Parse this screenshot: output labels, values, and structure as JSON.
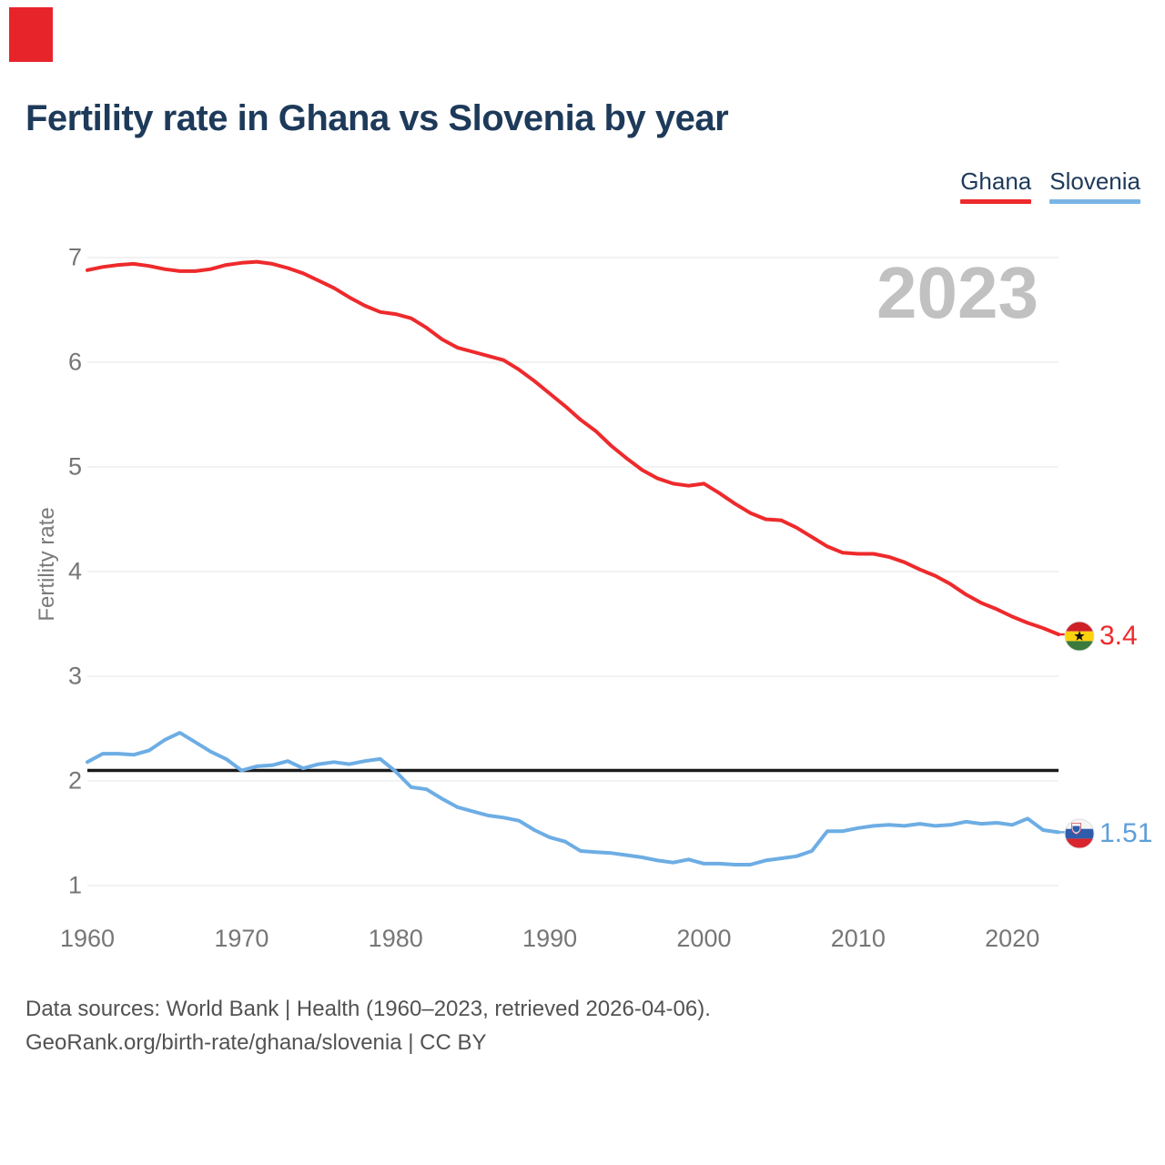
{
  "marker": {
    "color": "#e8242b"
  },
  "footer": {
    "line1": "Data sources: World Bank | Health (1960–2023, retrieved 2026-04-06).",
    "line2": "GeoRank.org/birth-rate/ghana/slovenia | CC BY"
  },
  "icons": {
    "ghana_flag": "ghana-flag-icon",
    "slovenia_flag": "slovenia-flag-icon"
  },
  "chart_data": {
    "type": "line",
    "title": "Fertility rate in Ghana vs Slovenia by year",
    "ylabel": "Fertility rate",
    "xlabel": "",
    "watermark": "2023",
    "grid": true,
    "legend_position": "top-right",
    "ylim": [
      1,
      7
    ],
    "y_ticks": [
      1,
      2,
      3,
      4,
      5,
      6,
      7
    ],
    "x_ticks": [
      1960,
      1970,
      1980,
      1990,
      2000,
      2010,
      2020
    ],
    "reference_line": {
      "value": 2.1,
      "color": "#1a1a1a"
    },
    "x": [
      1960,
      1961,
      1962,
      1963,
      1964,
      1965,
      1966,
      1967,
      1968,
      1969,
      1970,
      1971,
      1972,
      1973,
      1974,
      1975,
      1976,
      1977,
      1978,
      1979,
      1980,
      1981,
      1982,
      1983,
      1984,
      1985,
      1986,
      1987,
      1988,
      1989,
      1990,
      1991,
      1992,
      1993,
      1994,
      1995,
      1996,
      1997,
      1998,
      1999,
      2000,
      2001,
      2002,
      2003,
      2004,
      2005,
      2006,
      2007,
      2008,
      2009,
      2010,
      2011,
      2012,
      2013,
      2014,
      2015,
      2016,
      2017,
      2018,
      2019,
      2020,
      2021,
      2022,
      2023
    ],
    "series": [
      {
        "name": "Ghana",
        "color": "#ee2a2c",
        "end_label": "3.4",
        "values": [
          6.88,
          6.91,
          6.93,
          6.94,
          6.92,
          6.89,
          6.87,
          6.87,
          6.89,
          6.93,
          6.95,
          6.96,
          6.94,
          6.9,
          6.85,
          6.78,
          6.71,
          6.62,
          6.54,
          6.48,
          6.46,
          6.42,
          6.33,
          6.22,
          6.14,
          6.1,
          6.06,
          6.02,
          5.93,
          5.82,
          5.7,
          5.58,
          5.45,
          5.34,
          5.2,
          5.08,
          4.97,
          4.89,
          4.84,
          4.82,
          4.84,
          4.75,
          4.65,
          4.56,
          4.5,
          4.49,
          4.42,
          4.33,
          4.24,
          4.18,
          4.17,
          4.17,
          4.14,
          4.09,
          4.02,
          3.96,
          3.88,
          3.78,
          3.7,
          3.64,
          3.57,
          3.51,
          3.46,
          3.4
        ]
      },
      {
        "name": "Slovenia",
        "color": "#6dade4",
        "end_label": "1.51",
        "values": [
          2.18,
          2.26,
          2.26,
          2.25,
          2.29,
          2.39,
          2.46,
          2.37,
          2.28,
          2.21,
          2.1,
          2.14,
          2.15,
          2.19,
          2.12,
          2.16,
          2.18,
          2.16,
          2.19,
          2.21,
          2.09,
          1.94,
          1.92,
          1.83,
          1.75,
          1.71,
          1.67,
          1.65,
          1.62,
          1.53,
          1.46,
          1.42,
          1.33,
          1.32,
          1.31,
          1.29,
          1.27,
          1.24,
          1.22,
          1.25,
          1.21,
          1.21,
          1.2,
          1.2,
          1.24,
          1.26,
          1.28,
          1.33,
          1.52,
          1.52,
          1.55,
          1.57,
          1.58,
          1.57,
          1.59,
          1.57,
          1.58,
          1.61,
          1.59,
          1.6,
          1.58,
          1.64,
          1.53,
          1.51
        ]
      }
    ]
  }
}
